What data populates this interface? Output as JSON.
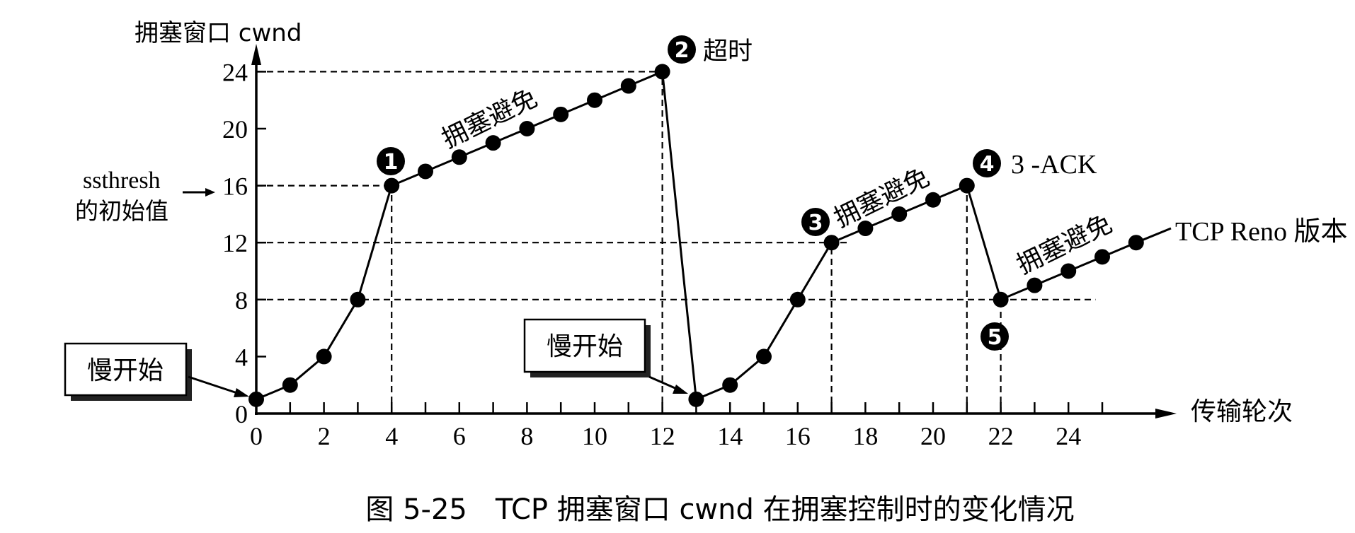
{
  "chart_data": {
    "type": "line",
    "title": "",
    "caption": "图 5-25　TCP 拥塞窗口 cwnd 在拥塞控制时的变化情况",
    "ylabel": "拥塞窗口  cwnd",
    "xlabel": "传输轮次",
    "ylim": [
      0,
      24
    ],
    "xlim": [
      0,
      26
    ],
    "grid": false,
    "y_ticks": [
      0,
      4,
      8,
      12,
      16,
      20,
      24
    ],
    "x_tick_labels": [
      0,
      2,
      4,
      6,
      8,
      10,
      12,
      14,
      16,
      18,
      20,
      22,
      24
    ],
    "x_minor_ticks": [
      1,
      2,
      3,
      4,
      5,
      6,
      7,
      8,
      9,
      10,
      11,
      12,
      13,
      14,
      15,
      16,
      17,
      18,
      19,
      20,
      21,
      22,
      23,
      24,
      25
    ],
    "series": [
      {
        "name": "cwnd",
        "x": [
          0,
          1,
          2,
          3,
          4,
          5,
          6,
          7,
          8,
          9,
          10,
          11,
          12,
          13,
          14,
          15,
          16,
          17,
          18,
          19,
          20,
          21,
          22,
          23,
          24,
          25,
          26
        ],
        "values": [
          1,
          2,
          4,
          8,
          16,
          17,
          18,
          19,
          20,
          21,
          22,
          23,
          24,
          1,
          2,
          4,
          8,
          12,
          13,
          14,
          15,
          16,
          8,
          9,
          10,
          11,
          12
        ]
      }
    ],
    "reference_lines": {
      "horizontal": [
        {
          "y": 24,
          "x_end": 12
        },
        {
          "y": 16,
          "x_end": 4
        },
        {
          "y": 12,
          "x_end": 17.5
        },
        {
          "y": 8,
          "x_end": 24.8
        }
      ],
      "vertical": [
        {
          "x": 4,
          "y_end": 16
        },
        {
          "x": 12,
          "y_end": 24
        },
        {
          "x": 17,
          "y_end": 12
        },
        {
          "x": 21,
          "y_end": 16
        },
        {
          "x": 22,
          "y_end": 8
        }
      ]
    },
    "annotations": [
      {
        "id": "1",
        "text": "",
        "at": [
          4,
          16
        ]
      },
      {
        "id": "2",
        "text": "超时",
        "at": [
          12,
          24
        ]
      },
      {
        "id": "3",
        "text": "",
        "at": [
          17,
          12
        ]
      },
      {
        "id": "4",
        "text": "3 -ACK",
        "at": [
          21,
          16
        ]
      },
      {
        "id": "5",
        "text": "",
        "at": [
          22,
          8
        ]
      }
    ],
    "phase_labels": [
      {
        "text": "拥塞避免",
        "near_x": 8
      },
      {
        "text": "拥塞避免",
        "near_x": 19
      },
      {
        "text": "拥塞避免",
        "near_x": 24
      }
    ],
    "boxed_labels": [
      {
        "text": "慢开始",
        "points_to": [
          0,
          1
        ]
      },
      {
        "text": "慢开始",
        "points_to": [
          13,
          1
        ]
      }
    ],
    "side_notes": {
      "ssthresh_line1": "ssthresh",
      "ssthresh_line2": "的初始值",
      "reno_label": "TCP Reno 版本"
    }
  },
  "labels": {
    "y_axis_title": "拥塞窗口  cwnd",
    "x_axis_title": "传输轮次",
    "caption": "图 5-25　TCP 拥塞窗口 cwnd 在拥塞控制时的变化情况",
    "ssthresh_line1": "ssthresh",
    "ssthresh_line2": "的初始值",
    "timeout": "超时",
    "three_ack": "3 -ACK",
    "reno": "TCP Reno 版本",
    "slow_start": "慢开始",
    "congestion_avoidance": "拥塞避免",
    "badges": [
      "1",
      "2",
      "3",
      "4",
      "5"
    ]
  }
}
